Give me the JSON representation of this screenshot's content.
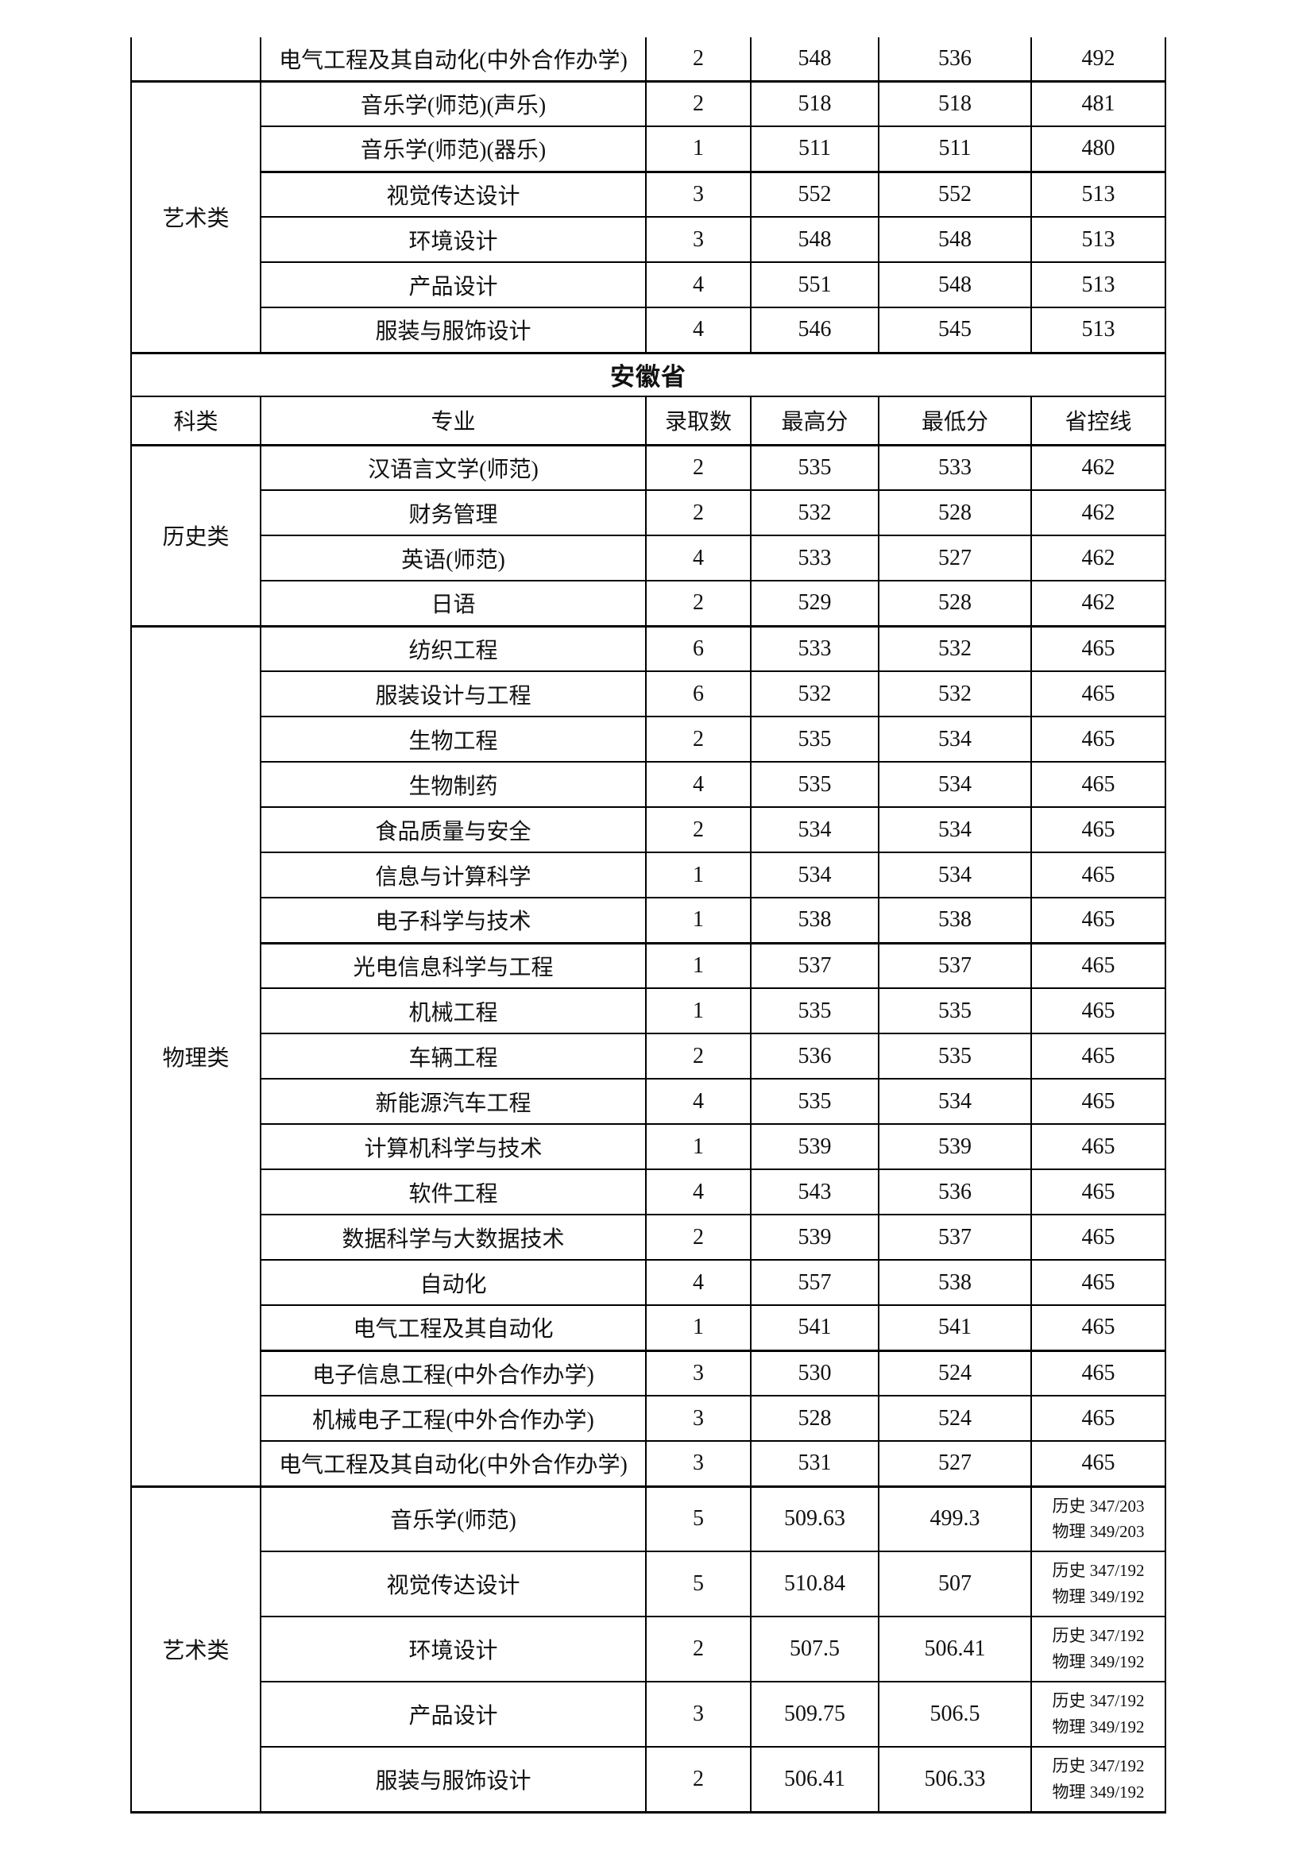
{
  "columns": [
    "科类",
    "专业",
    "录取数",
    "最高分",
    "最低分",
    "省控线"
  ],
  "blocks": [
    {
      "kind": "section",
      "category": "",
      "rows": [
        {
          "major": "电气工程及其自动化(中外合作办学)",
          "count": "2",
          "max": "548",
          "min": "536",
          "control": "492"
        }
      ]
    },
    {
      "kind": "section",
      "category": "艺术类",
      "rows": [
        {
          "major": "音乐学(师范)(声乐)",
          "count": "2",
          "max": "518",
          "min": "518",
          "control": "481"
        },
        {
          "major": "音乐学(师范)(器乐)",
          "count": "1",
          "max": "511",
          "min": "511",
          "control": "480"
        },
        {
          "major": "视觉传达设计",
          "count": "3",
          "max": "552",
          "min": "552",
          "control": "513"
        },
        {
          "major": "环境设计",
          "count": "3",
          "max": "548",
          "min": "548",
          "control": "513"
        },
        {
          "major": "产品设计",
          "count": "4",
          "max": "551",
          "min": "548",
          "control": "513"
        },
        {
          "major": "服装与服饰设计",
          "count": "4",
          "max": "546",
          "min": "545",
          "control": "513"
        }
      ]
    },
    {
      "kind": "province_title",
      "text": "安徽省"
    },
    {
      "kind": "column_header"
    },
    {
      "kind": "section",
      "category": "历史类",
      "rows": [
        {
          "major": "汉语言文学(师范)",
          "count": "2",
          "max": "535",
          "min": "533",
          "control": "462"
        },
        {
          "major": "财务管理",
          "count": "2",
          "max": "532",
          "min": "528",
          "control": "462"
        },
        {
          "major": "英语(师范)",
          "count": "4",
          "max": "533",
          "min": "527",
          "control": "462"
        },
        {
          "major": "日语",
          "count": "2",
          "max": "529",
          "min": "528",
          "control": "462"
        }
      ]
    },
    {
      "kind": "section",
      "category": "物理类",
      "rows": [
        {
          "major": "纺织工程",
          "count": "6",
          "max": "533",
          "min": "532",
          "control": "465"
        },
        {
          "major": "服装设计与工程",
          "count": "6",
          "max": "532",
          "min": "532",
          "control": "465"
        },
        {
          "major": "生物工程",
          "count": "2",
          "max": "535",
          "min": "534",
          "control": "465"
        },
        {
          "major": "生物制药",
          "count": "4",
          "max": "535",
          "min": "534",
          "control": "465"
        },
        {
          "major": "食品质量与安全",
          "count": "2",
          "max": "534",
          "min": "534",
          "control": "465"
        },
        {
          "major": "信息与计算科学",
          "count": "1",
          "max": "534",
          "min": "534",
          "control": "465"
        },
        {
          "major": "电子科学与技术",
          "count": "1",
          "max": "538",
          "min": "538",
          "control": "465"
        },
        {
          "major": "光电信息科学与工程",
          "count": "1",
          "max": "537",
          "min": "537",
          "control": "465"
        },
        {
          "major": "机械工程",
          "count": "1",
          "max": "535",
          "min": "535",
          "control": "465"
        },
        {
          "major": "车辆工程",
          "count": "2",
          "max": "536",
          "min": "535",
          "control": "465"
        },
        {
          "major": "新能源汽车工程",
          "count": "4",
          "max": "535",
          "min": "534",
          "control": "465"
        },
        {
          "major": "计算机科学与技术",
          "count": "1",
          "max": "539",
          "min": "539",
          "control": "465"
        },
        {
          "major": "软件工程",
          "count": "4",
          "max": "543",
          "min": "536",
          "control": "465"
        },
        {
          "major": "数据科学与大数据技术",
          "count": "2",
          "max": "539",
          "min": "537",
          "control": "465"
        },
        {
          "major": "自动化",
          "count": "4",
          "max": "557",
          "min": "538",
          "control": "465"
        },
        {
          "major": "电气工程及其自动化",
          "count": "1",
          "max": "541",
          "min": "541",
          "control": "465"
        },
        {
          "major": "电子信息工程(中外合作办学)",
          "count": "3",
          "max": "530",
          "min": "524",
          "control": "465"
        },
        {
          "major": "机械电子工程(中外合作办学)",
          "count": "3",
          "max": "528",
          "min": "524",
          "control": "465"
        },
        {
          "major": "电气工程及其自动化(中外合作办学)",
          "count": "3",
          "max": "531",
          "min": "527",
          "control": "465"
        }
      ]
    },
    {
      "kind": "section",
      "category": "艺术类",
      "rows": [
        {
          "major": "音乐学(师范)",
          "count": "5",
          "max": "509.63",
          "min": "499.3",
          "control_lines": [
            "历史 347/203",
            "物理 349/203"
          ]
        },
        {
          "major": "视觉传达设计",
          "count": "5",
          "max": "510.84",
          "min": "507",
          "control_lines": [
            "历史 347/192",
            "物理 349/192"
          ]
        },
        {
          "major": "环境设计",
          "count": "2",
          "max": "507.5",
          "min": "506.41",
          "control_lines": [
            "历史 347/192",
            "物理 349/192"
          ]
        },
        {
          "major": "产品设计",
          "count": "3",
          "max": "509.75",
          "min": "506.5",
          "control_lines": [
            "历史 347/192",
            "物理 349/192"
          ]
        },
        {
          "major": "服装与服饰设计",
          "count": "2",
          "max": "506.41",
          "min": "506.33",
          "control_lines": [
            "历史 347/192",
            "物理 349/192"
          ]
        }
      ]
    }
  ]
}
